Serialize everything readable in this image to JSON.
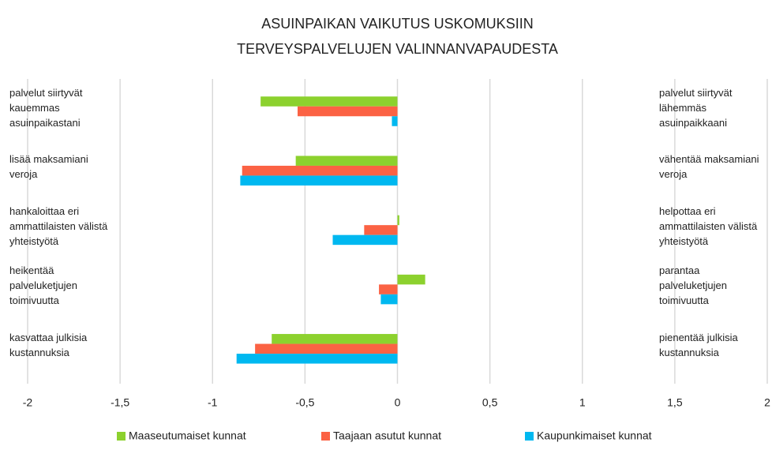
{
  "chart_data": {
    "type": "hbar",
    "title": "ASUINPAIKAN VAIKUTUS USKOMUKSIIN TERVEYSPALVELUJEN VALINNANVAPAUDESTA",
    "categories": [
      "palvelut siirtyvät kauemmas asuinpaikastani",
      "lisää maksamiani veroja",
      "hankaloittaa eri ammattilaisten välistä yhteistyötä",
      "heikentää palveluketjujen toimivuutta",
      "kasvattaa julkisia kustannuksia"
    ],
    "right_labels": [
      "palvelut siirtyvät lähemmäs asuinpaikkaani",
      "vähentää maksamiani veroja",
      "helpottaa eri ammattilaisten välistä yhteistyötä",
      "parantaa palveluketjujen toimivuutta",
      "pienentää julkisia kustannuksia"
    ],
    "series": [
      {
        "name": "Maaseutumaiset kunnat",
        "color": "#8cd12e",
        "values": [
          -0.74,
          -0.55,
          0.01,
          0.15,
          -0.68
        ]
      },
      {
        "name": "Taajaan asutut kunnat",
        "color": "#fb6244",
        "values": [
          -0.54,
          -0.84,
          -0.18,
          -0.1,
          -0.77
        ]
      },
      {
        "name": "Kaupunkimaiset kunnat",
        "color": "#00b8f0",
        "values": [
          -0.03,
          -0.85,
          -0.35,
          -0.09,
          -0.87
        ]
      }
    ],
    "xlim": [
      -2,
      2
    ],
    "xticks": [
      -2,
      {
        "value": -1.5,
        "label": "-1,5"
      },
      -1,
      {
        "value": -0.5,
        "label": "-0,5"
      },
      0,
      {
        "value": 0.5,
        "label": "0,5"
      },
      1,
      {
        "value": 1.5,
        "label": "1,5"
      },
      2
    ],
    "grid": true,
    "legend": "bottom"
  }
}
